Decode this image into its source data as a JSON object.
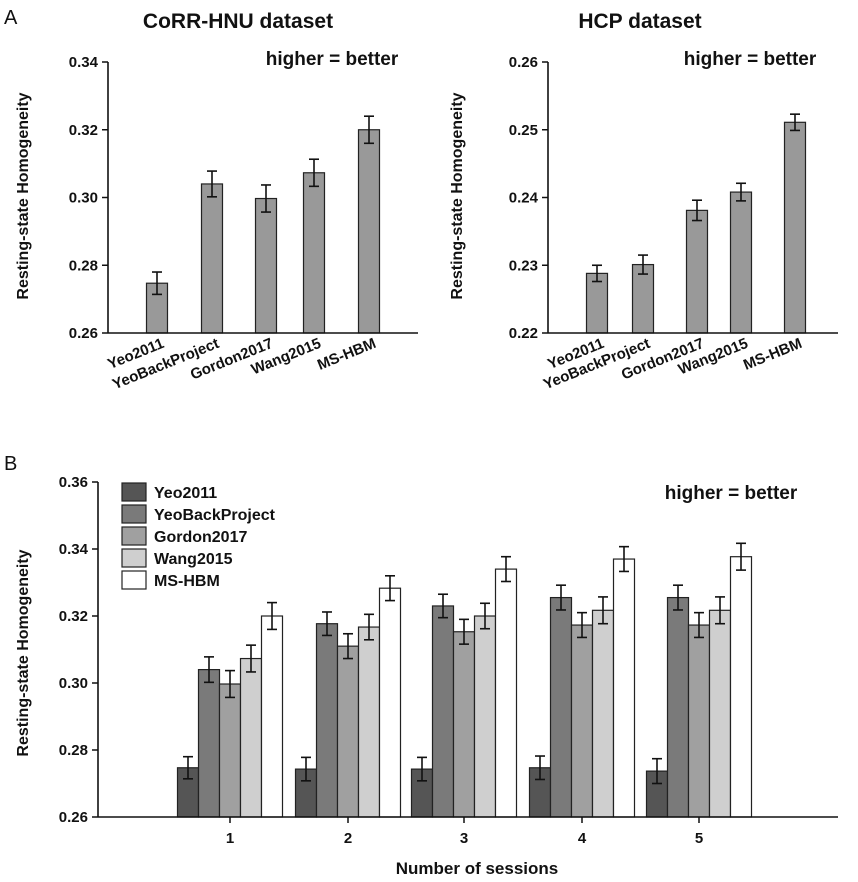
{
  "chart_data": [
    {
      "panel": "A",
      "type": "bar",
      "title": "CoRR-HNU dataset",
      "annotation": "higher = better",
      "ylabel": "Resting-state Homogeneity",
      "xlabel": "",
      "ylim": [
        0.26,
        0.34
      ],
      "yticks": [
        "0.26",
        "0.28",
        "0.30",
        "0.32",
        "0.34"
      ],
      "categories": [
        "Yeo2011",
        "YeoBackProject",
        "Gordon2017",
        "Wang2015",
        "MS-HBM"
      ],
      "values": [
        0.2747,
        0.304,
        0.2997,
        0.3073,
        0.32
      ],
      "errors": [
        0.0033,
        0.0038,
        0.004,
        0.004,
        0.004
      ],
      "bar_color": "#999999",
      "grid": false
    },
    {
      "panel": "",
      "type": "bar",
      "title": "HCP dataset",
      "annotation": "higher = better",
      "ylabel": "Resting-state Homogeneity",
      "xlabel": "",
      "ylim": [
        0.22,
        0.26
      ],
      "yticks": [
        "0.22",
        "0.23",
        "0.24",
        "0.25",
        "0.26"
      ],
      "categories": [
        "Yeo2011",
        "YeoBackProject",
        "Gordon2017",
        "Wang2015",
        "MS-HBM"
      ],
      "values": [
        0.2288,
        0.2301,
        0.2381,
        0.2408,
        0.2511
      ],
      "errors": [
        0.0012,
        0.0014,
        0.0015,
        0.0013,
        0.0012
      ],
      "bar_color": "#999999",
      "grid": false
    },
    {
      "panel": "B",
      "type": "bar",
      "title": "",
      "annotation": "higher = better",
      "ylabel": "Resting-state Homogeneity",
      "xlabel": "Number of sessions",
      "ylim": [
        0.26,
        0.36
      ],
      "yticks": [
        "0.26",
        "0.28",
        "0.30",
        "0.32",
        "0.34",
        "0.36"
      ],
      "categories": [
        "1",
        "2",
        "3",
        "4",
        "5"
      ],
      "legend_position": "top-left",
      "grid": false,
      "series": [
        {
          "name": "Yeo2011",
          "color": "#555555",
          "values": [
            0.2747,
            0.2743,
            0.2743,
            0.2747,
            0.2737
          ],
          "errors": [
            0.0033,
            0.0035,
            0.0035,
            0.0035,
            0.0037
          ]
        },
        {
          "name": "YeoBackProject",
          "color": "#7a7a7a",
          "values": [
            0.304,
            0.3177,
            0.323,
            0.3255,
            0.3255
          ],
          "errors": [
            0.0038,
            0.0035,
            0.0035,
            0.0037,
            0.0037
          ]
        },
        {
          "name": "Gordon2017",
          "color": "#a0a0a0",
          "values": [
            0.2997,
            0.311,
            0.3153,
            0.3173,
            0.3173
          ],
          "errors": [
            0.004,
            0.0037,
            0.0037,
            0.0037,
            0.0037
          ]
        },
        {
          "name": "Wang2015",
          "color": "#cfcfcf",
          "values": [
            0.3073,
            0.3167,
            0.32,
            0.3217,
            0.3217
          ],
          "errors": [
            0.004,
            0.0038,
            0.0038,
            0.004,
            0.004
          ]
        },
        {
          "name": "MS-HBM",
          "color": "#ffffff",
          "values": [
            0.32,
            0.3283,
            0.334,
            0.337,
            0.3377
          ],
          "errors": [
            0.004,
            0.0037,
            0.0037,
            0.0037,
            0.004
          ]
        }
      ]
    }
  ]
}
